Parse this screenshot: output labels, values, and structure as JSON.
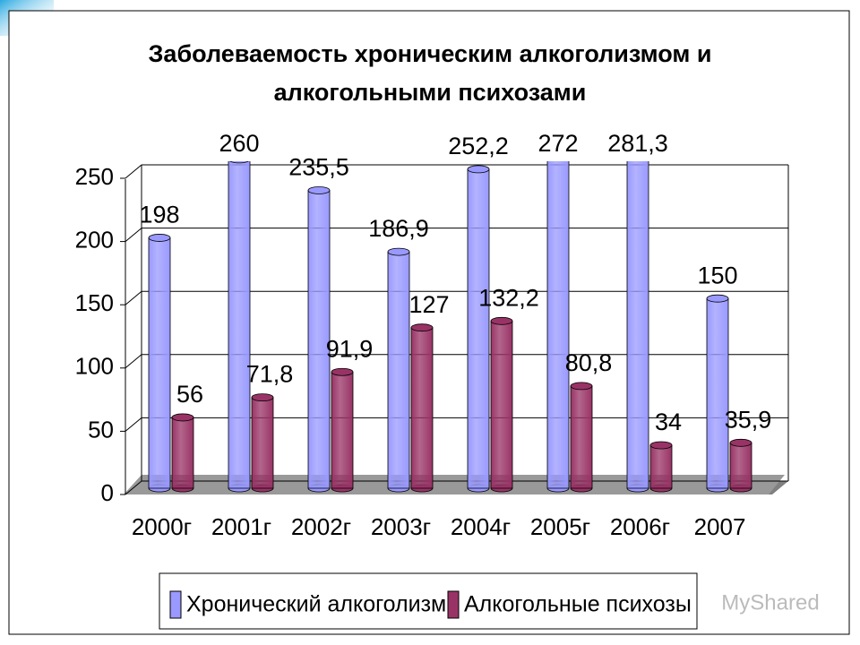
{
  "chart_data": {
    "type": "bar3d",
    "title": [
      "Заболеваемость хроническим алкоголизмом и",
      "алкогольными психозами"
    ],
    "categories": [
      "2000г",
      "2001г",
      "2002г",
      "2003г",
      "2004г",
      "2005г",
      "2006г",
      "2007"
    ],
    "series": [
      {
        "name": "Хронический алкоголизм",
        "color": "#9999ff",
        "values": [
          198,
          260,
          235.5,
          186.9,
          252.2,
          272,
          281.3,
          150
        ],
        "value_labels": [
          "198",
          "260",
          "235,5",
          "186,9",
          "252,2",
          "272",
          "281,3",
          "150"
        ]
      },
      {
        "name": "Алкогольные психозы",
        "color": "#993366",
        "values": [
          56,
          71.8,
          91.9,
          127,
          132.2,
          80.8,
          34,
          35.9
        ],
        "value_labels": [
          "56",
          "71,8",
          "91,9",
          "127",
          "132,2",
          "80,8",
          "34",
          "35,9"
        ]
      }
    ],
    "ylim": [
      0,
      250
    ],
    "yticks": [
      0,
      50,
      100,
      150,
      200,
      250
    ],
    "grid": true,
    "legend": "bottom",
    "watermark": "MyShared"
  }
}
